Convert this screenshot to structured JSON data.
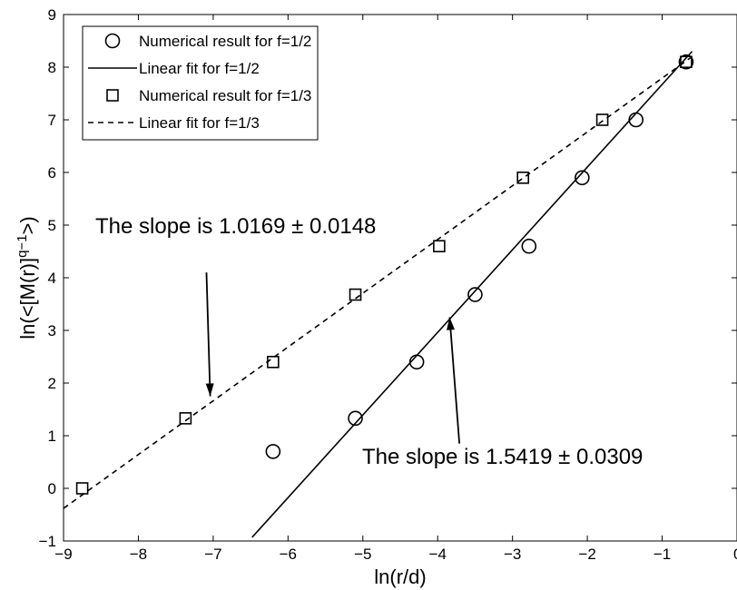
{
  "chart_data": {
    "type": "scatter",
    "title": "",
    "xlabel": "ln(r/d)",
    "ylabel": {
      "base": "ln(<[M(r)]",
      "sup": "q−1",
      "end": ">)"
    },
    "xlim": [
      -9,
      0
    ],
    "ylim": [
      -1,
      9
    ],
    "xticks": [
      -9,
      -8,
      -7,
      -6,
      -5,
      -4,
      -3,
      -2,
      -1,
      0
    ],
    "yticks": [
      -1,
      0,
      1,
      2,
      3,
      4,
      5,
      6,
      7,
      8,
      9
    ],
    "grid": false,
    "legend_position": "top-left",
    "series": [
      {
        "name": "Numerical result for f=1/2",
        "kind": "marker",
        "marker": "circle",
        "x": [
          -6.2,
          -5.1,
          -4.28,
          -3.5,
          -2.78,
          -2.07,
          -1.35,
          -0.68
        ],
        "y": [
          0.7,
          1.33,
          2.4,
          3.68,
          4.6,
          5.9,
          7.0,
          8.1
        ]
      },
      {
        "name": "Linear fit for f=1/2",
        "kind": "line",
        "dash": "solid",
        "x": [
          -6.48,
          -0.6
        ],
        "y": [
          -0.93,
          8.3
        ]
      },
      {
        "name": "Numerical result for f=1/3",
        "kind": "marker",
        "marker": "square",
        "x": [
          -8.75,
          -7.37,
          -6.2,
          -5.1,
          -3.98,
          -2.86,
          -1.8,
          -0.68
        ],
        "y": [
          0.0,
          1.33,
          2.4,
          3.68,
          4.6,
          5.9,
          7.0,
          8.1
        ]
      },
      {
        "name": "Linear fit for f=1/3",
        "kind": "line",
        "dash": "dashed",
        "x": [
          -9.0,
          -0.6
        ],
        "y": [
          -0.38,
          8.2
        ]
      }
    ],
    "annotations": [
      {
        "text": "The slope is 1.0169 ± 0.0148",
        "arrow_from": [
          -7.09,
          4.1
        ],
        "arrow_to": [
          -7.04,
          1.75
        ]
      },
      {
        "text": "The slope is 1.5419 ± 0.0309",
        "arrow_from": [
          -3.71,
          0.85
        ],
        "arrow_to": [
          -3.84,
          3.25
        ]
      }
    ]
  }
}
